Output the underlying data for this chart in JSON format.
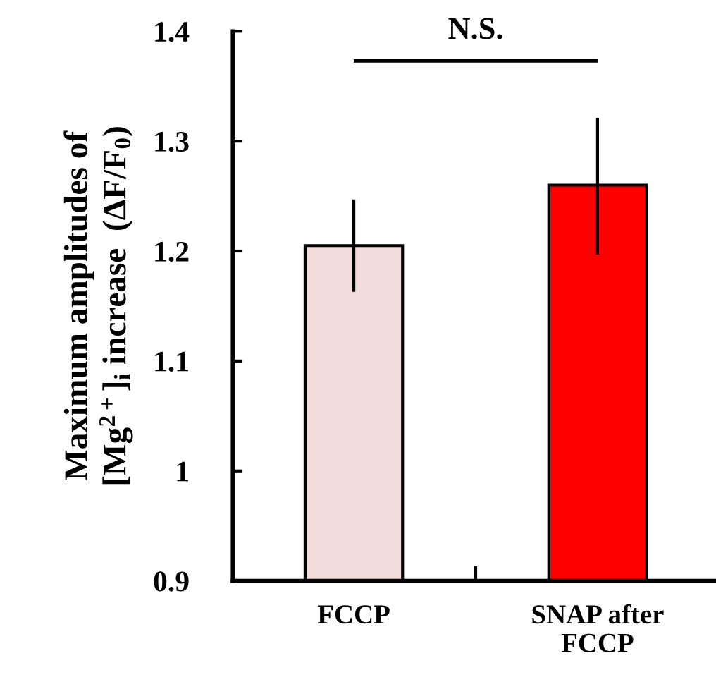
{
  "chart_data": {
    "type": "bar",
    "categories": [
      "FCCP",
      "SNAP after\nFCCP"
    ],
    "values": [
      1.205,
      1.26
    ],
    "colors": [
      "#f2dcdc",
      "#ff0000"
    ],
    "errors": [
      [
        1.163,
        1.247
      ],
      [
        1.197,
        1.321
      ]
    ],
    "ylabel": "Maximum amplitudes of\n[Mg$^{2+}$]$_{i}$ increase  (ΔF/F$_{0}$)",
    "ylim": [
      0.9,
      1.4
    ],
    "yticks": [
      0.9,
      1,
      1.1,
      1.2,
      1.3,
      1.4
    ],
    "annotations": [
      "N.S."
    ],
    "grid": false,
    "legend": false
  }
}
